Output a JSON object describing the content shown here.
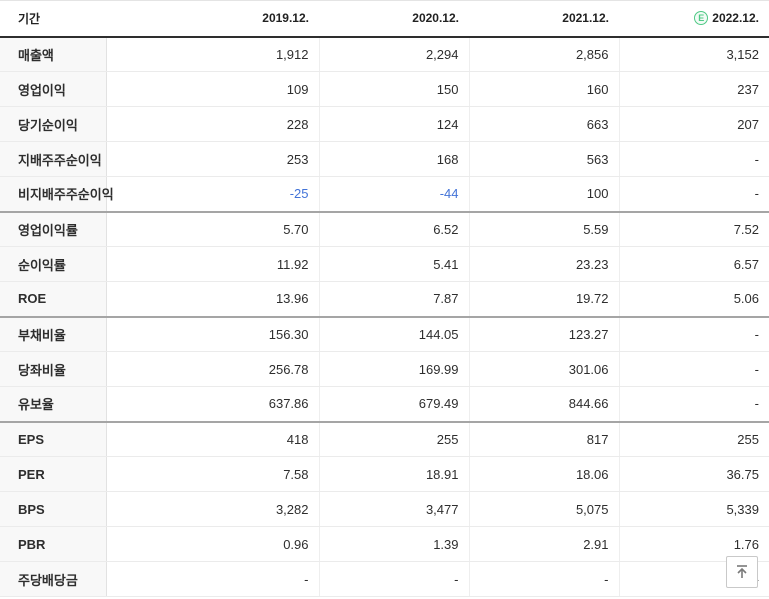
{
  "table": {
    "period_label": "기간",
    "columns": [
      "2019.12.",
      "2020.12.",
      "2021.12.",
      "2022.12."
    ],
    "estimate_col_index": 3,
    "estimate_letter": "E",
    "rows": [
      {
        "label": "매출액",
        "values": [
          "1,912",
          "2,294",
          "2,856",
          "3,152"
        ],
        "section_start": false
      },
      {
        "label": "영업이익",
        "values": [
          "109",
          "150",
          "160",
          "237"
        ],
        "section_start": false
      },
      {
        "label": "당기순이익",
        "values": [
          "228",
          "124",
          "663",
          "207"
        ],
        "section_start": false
      },
      {
        "label": "지배주주순이익",
        "values": [
          "253",
          "168",
          "563",
          "-"
        ],
        "section_start": false
      },
      {
        "label": "비지배주주순이익",
        "values": [
          "-25",
          "-44",
          "100",
          "-"
        ],
        "section_start": false
      },
      {
        "label": "영업이익률",
        "values": [
          "5.70",
          "6.52",
          "5.59",
          "7.52"
        ],
        "section_start": true
      },
      {
        "label": "순이익률",
        "values": [
          "11.92",
          "5.41",
          "23.23",
          "6.57"
        ],
        "section_start": false
      },
      {
        "label": "ROE",
        "values": [
          "13.96",
          "7.87",
          "19.72",
          "5.06"
        ],
        "section_start": false
      },
      {
        "label": "부채비율",
        "values": [
          "156.30",
          "144.05",
          "123.27",
          "-"
        ],
        "section_start": true
      },
      {
        "label": "당좌비율",
        "values": [
          "256.78",
          "169.99",
          "301.06",
          "-"
        ],
        "section_start": false
      },
      {
        "label": "유보율",
        "values": [
          "637.86",
          "679.49",
          "844.66",
          "-"
        ],
        "section_start": false
      },
      {
        "label": "EPS",
        "values": [
          "418",
          "255",
          "817",
          "255"
        ],
        "section_start": true
      },
      {
        "label": "PER",
        "values": [
          "7.58",
          "18.91",
          "18.06",
          "36.75"
        ],
        "section_start": false
      },
      {
        "label": "BPS",
        "values": [
          "3,282",
          "3,477",
          "5,075",
          "5,339"
        ],
        "section_start": false
      },
      {
        "label": "PBR",
        "values": [
          "0.96",
          "1.39",
          "2.91",
          "1.76"
        ],
        "section_start": false
      },
      {
        "label": "주당배당금",
        "values": [
          "-",
          "-",
          "-",
          "-"
        ],
        "section_start": false
      }
    ]
  },
  "colors": {
    "negative": "#4273d8",
    "estimate": "#4fc985"
  },
  "scroll_top_button": {
    "icon": "scroll-to-top-arrow"
  }
}
